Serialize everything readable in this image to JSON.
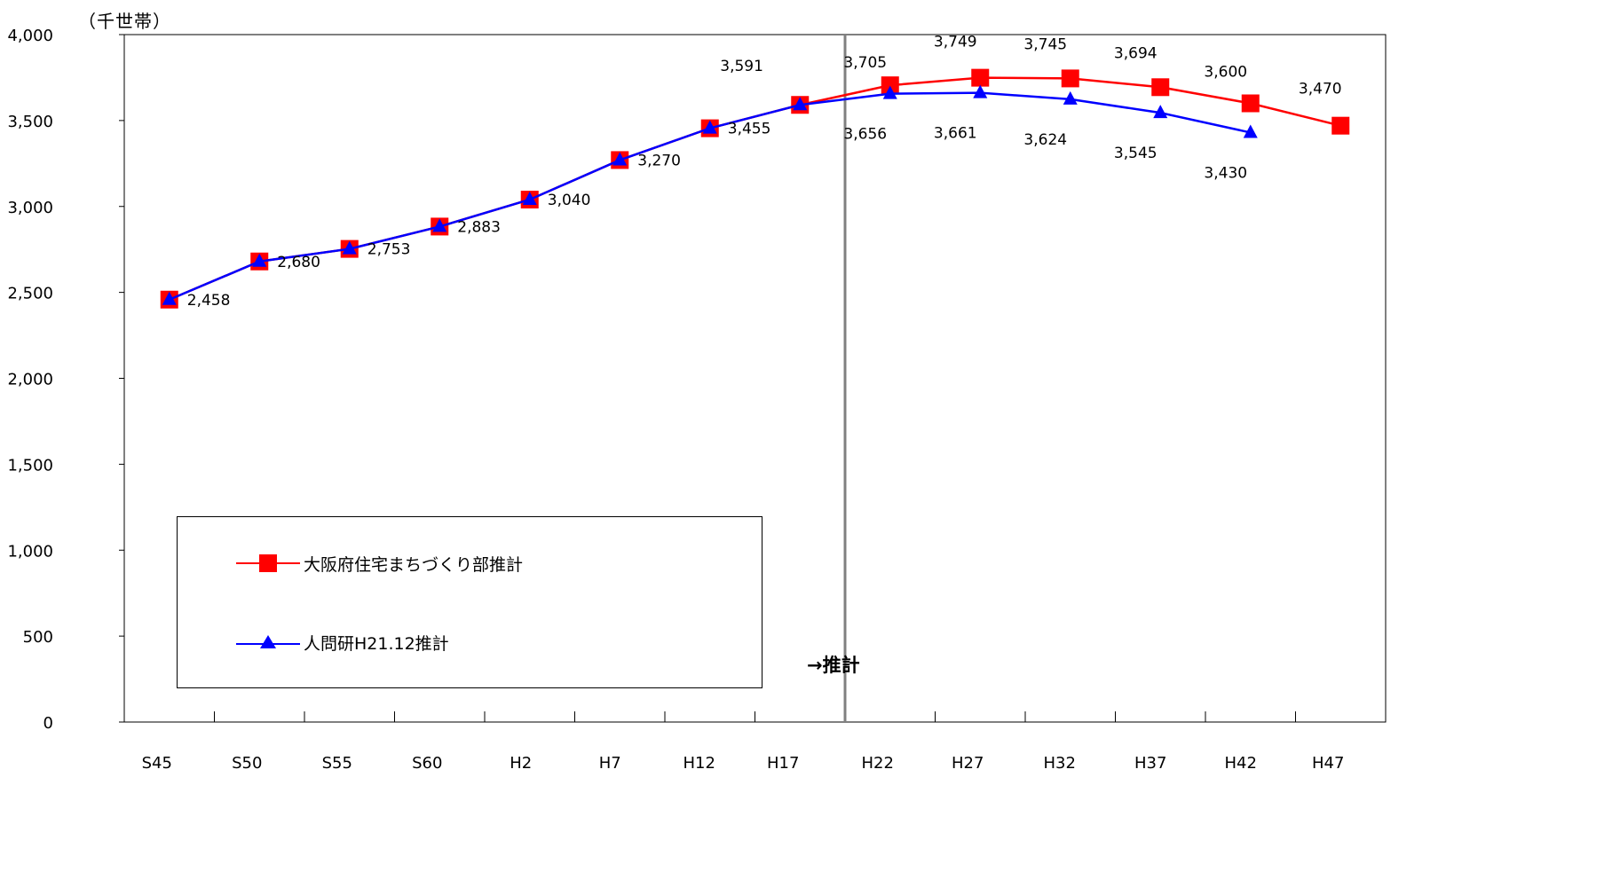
{
  "chart_data": {
    "type": "line",
    "title": "",
    "unit_label": "（千世帯）",
    "xlabel": "",
    "ylabel": "",
    "ylim": [
      0,
      4000
    ],
    "y_ticks": [
      "0",
      "500",
      "1,000",
      "1,500",
      "2,000",
      "2,500",
      "3,000",
      "3,500",
      "4,000"
    ],
    "y_tick_values": [
      0,
      500,
      1000,
      1500,
      2000,
      2500,
      3000,
      3500,
      4000
    ],
    "categories": [
      "S45",
      "S50",
      "S55",
      "S60",
      "H2",
      "H7",
      "H12",
      "H17",
      "H22",
      "H27",
      "H32",
      "H37",
      "H42",
      "H47"
    ],
    "grid": false,
    "legend_position": "bottom-left inside plot",
    "forecast_start_category": "H17",
    "forecast_label": "→推計",
    "series": [
      {
        "name": "大阪府住宅まちづくり部推計",
        "color": "#ff0000",
        "marker": "square",
        "values": [
          2458,
          2680,
          2753,
          2883,
          3040,
          3270,
          3455,
          3591,
          3705,
          3749,
          3745,
          3694,
          3600,
          3470
        ],
        "labels": [
          "",
          "",
          "",
          "",
          "",
          "",
          "",
          "3,591",
          "3,705",
          "3,749",
          "3,745",
          "3,694",
          "3,600",
          "3,470"
        ]
      },
      {
        "name": "人問研H21.12推計",
        "color": "#0000ff",
        "marker": "triangle",
        "values": [
          2458,
          2680,
          2753,
          2883,
          3040,
          3270,
          3455,
          3591,
          3656,
          3661,
          3624,
          3545,
          3430,
          null
        ],
        "labels": [
          "2,458",
          "2,680",
          "2,753",
          "2,883",
          "3,040",
          "3,270",
          "3,455",
          "",
          "3,656",
          "3,661",
          "3,624",
          "3,545",
          "3,430",
          ""
        ]
      }
    ]
  }
}
